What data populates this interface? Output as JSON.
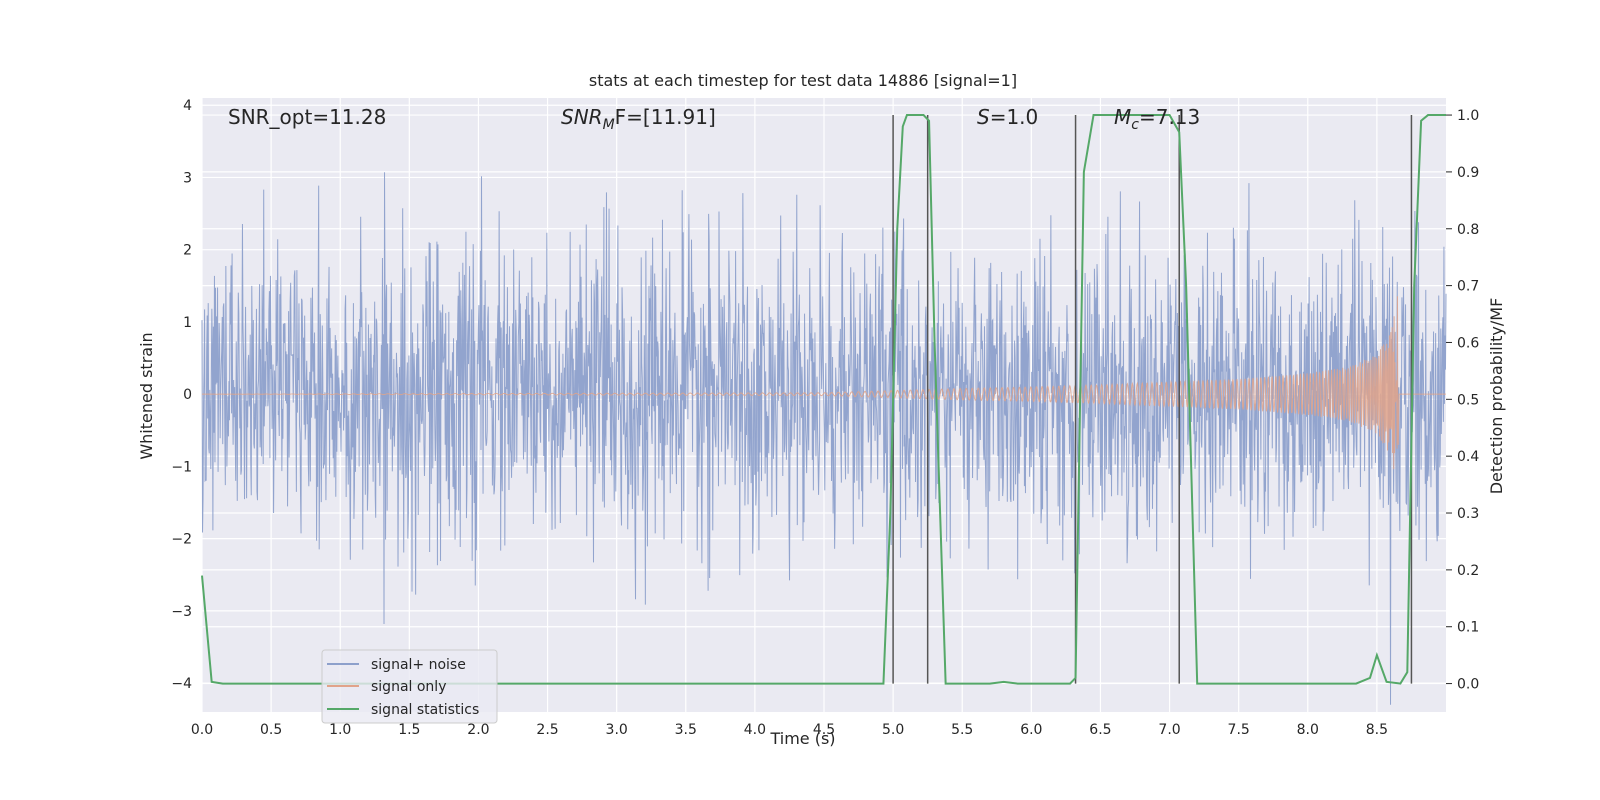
{
  "chart_data": {
    "type": "line",
    "title": "stats at each timestep for test data 14886 [signal=1]",
    "xlabel": "Time (s)",
    "ylabel": "Whitened strain",
    "y2label": "Detection probability/MF",
    "xlim": [
      0,
      9
    ],
    "ylim": [
      -4.4,
      4.1
    ],
    "y2lim": [
      -0.05,
      1.03
    ],
    "xticks": [
      0.0,
      0.5,
      1.0,
      1.5,
      2.0,
      2.5,
      3.0,
      3.5,
      4.0,
      4.5,
      5.0,
      5.5,
      6.0,
      6.5,
      7.0,
      7.5,
      8.0,
      8.5
    ],
    "xtick_labels": [
      "0.0",
      "0.5",
      "1.0",
      "1.5",
      "2.0",
      "2.5",
      "3.0",
      "3.5",
      "4.0",
      "4.5",
      "5.0",
      "5.5",
      "6.0",
      "6.5",
      "7.0",
      "7.5",
      "8.0",
      "8.5"
    ],
    "yticks": [
      -4,
      -3,
      -2,
      -1,
      0,
      1,
      2,
      3,
      4
    ],
    "ytick_labels": [
      "−4",
      "−3",
      "−2",
      "−1",
      "0",
      "1",
      "2",
      "3",
      "4"
    ],
    "y2ticks": [
      0.0,
      0.1,
      0.2,
      0.3,
      0.4,
      0.5,
      0.6,
      0.7,
      0.8,
      0.9,
      1.0
    ],
    "y2tick_labels": [
      "0.0",
      "0.1",
      "0.2",
      "0.3",
      "0.4",
      "0.5",
      "0.6",
      "0.7",
      "0.8",
      "0.9",
      "1.0"
    ],
    "grid": true,
    "legend_position": "bottom-left",
    "annotations": [
      {
        "text": "SNR_opt=11.28"
      },
      {
        "text": "SNR_MF=[11.91]"
      },
      {
        "text": "S=1.0"
      },
      {
        "text": "M_c=7.13"
      }
    ],
    "series": [
      {
        "name": "signal+ noise",
        "axis": "left",
        "color": "#8da0cb",
        "description": "whitened noisy strain, approx. Gaussian, std ~1, sampled densely from 0 to 9 s",
        "approx_std": 1.0
      },
      {
        "name": "signal only",
        "axis": "left",
        "color": "#e1a38a",
        "description": "chirp signal, amplitude grows from ~0 near 4.5 s to ~1.4 peak at ~8.65 s, then ends",
        "envelope": {
          "t": [
            0.0,
            4.5,
            5.0,
            5.5,
            6.0,
            6.5,
            7.0,
            7.5,
            8.0,
            8.3,
            8.5,
            8.6,
            8.65,
            8.66,
            9.0
          ],
          "amp": [
            0.0,
            0.02,
            0.05,
            0.08,
            0.1,
            0.13,
            0.17,
            0.21,
            0.29,
            0.38,
            0.55,
            0.85,
            1.4,
            0.0,
            0.0
          ]
        }
      },
      {
        "name": "signal statistics",
        "axis": "right",
        "color": "#55a868",
        "x": [
          0.0,
          0.07,
          0.15,
          1.0,
          2.0,
          3.0,
          4.0,
          4.8,
          4.93,
          4.98,
          5.03,
          5.07,
          5.1,
          5.17,
          5.22,
          5.26,
          5.3,
          5.38,
          5.7,
          5.8,
          5.9,
          6.0,
          6.28,
          6.32,
          6.38,
          6.45,
          6.55,
          6.8,
          7.0,
          7.07,
          7.12,
          7.2,
          7.3,
          7.5,
          8.0,
          8.35,
          8.45,
          8.5,
          8.57,
          8.67,
          8.72,
          8.77,
          8.82,
          8.87,
          8.95,
          9.0
        ],
        "values": [
          0.19,
          0.003,
          0.0,
          0.0,
          0.0,
          0.0,
          0.0,
          0.0,
          0.0,
          0.3,
          0.8,
          0.98,
          1.0,
          1.0,
          1.0,
          0.99,
          0.6,
          0.0,
          0.0,
          0.003,
          0.0,
          0.0,
          0.0,
          0.01,
          0.9,
          1.0,
          1.0,
          1.0,
          1.0,
          0.97,
          0.7,
          0.0,
          0.0,
          0.0,
          0.0,
          0.0,
          0.01,
          0.05,
          0.003,
          0.0,
          0.02,
          0.7,
          0.99,
          1.0,
          1.0,
          1.0
        ]
      }
    ],
    "vertical_lines": [
      5.0,
      5.25,
      6.32,
      7.07,
      8.75
    ],
    "vertical_line_color": "#555555"
  }
}
